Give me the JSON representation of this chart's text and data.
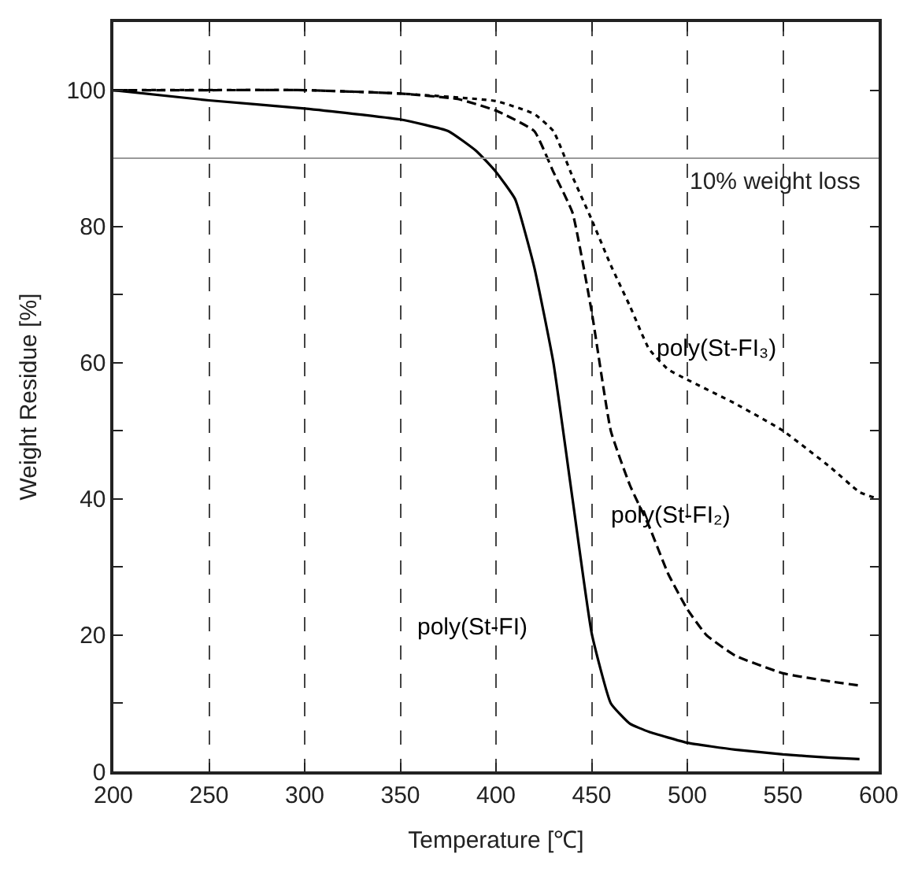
{
  "chart_data": {
    "type": "line",
    "xlabel": "Temperature [℃]",
    "ylabel": "Weight Residue [%]",
    "xlim": [
      200,
      600
    ],
    "xticks": [
      200,
      250,
      300,
      350,
      400,
      450,
      500,
      550,
      600
    ],
    "ylim": [
      0,
      110
    ],
    "yticks": [
      0,
      {
        "value": 10,
        "label": null
      },
      20,
      {
        "value": 30,
        "label": null
      },
      40,
      {
        "value": 50,
        "label": null
      },
      60,
      {
        "value": 70,
        "label": null
      },
      80,
      {
        "value": 90,
        "label": null
      },
      100
    ],
    "grid": "x",
    "legend": false,
    "marker": "none",
    "series": [
      {
        "name": "poly(St-FI)",
        "color": "#000000",
        "line_style": "solid",
        "x": [
          200,
          250,
          300,
          350,
          375,
          390,
          400,
          410,
          420,
          430,
          440,
          450,
          460,
          470,
          480,
          500,
          525,
          550,
          575,
          590
        ],
        "values": [
          100,
          98.5,
          97.3,
          95.7,
          94,
          91,
          88,
          84,
          74,
          60,
          40,
          20.3,
          10,
          7,
          5.8,
          4.2,
          3.2,
          2.5,
          2,
          1.8
        ]
      },
      {
        "name": "poly(St-FI₂)",
        "color": "#000000",
        "line_style": "dashed",
        "x": [
          200,
          250,
          300,
          350,
          380,
          400,
          420,
          430,
          440,
          450,
          460,
          470,
          480,
          490,
          500,
          510,
          525,
          550,
          575,
          590
        ],
        "values": [
          100,
          100,
          100,
          99.5,
          98.7,
          97,
          94,
          88,
          82,
          67.5,
          50,
          42,
          36,
          29,
          23.8,
          20,
          17,
          14.4,
          13.2,
          12.6
        ]
      },
      {
        "name": "poly(St-FI₃)",
        "color": "#000000",
        "line_style": "dotted",
        "x": [
          200,
          300,
          350,
          400,
          420,
          430,
          440,
          450,
          460,
          470,
          480,
          490,
          500,
          525,
          550,
          575,
          590,
          600
        ],
        "values": [
          100,
          100,
          99.5,
          98.4,
          96.5,
          94,
          87.3,
          81,
          74.3,
          68.3,
          62,
          59,
          57.5,
          54,
          50,
          44.6,
          41,
          40
        ]
      }
    ],
    "ref_lines": [
      {
        "axis": "y",
        "value": 90,
        "label": "10% weight loss",
        "color": "#999999"
      }
    ]
  }
}
